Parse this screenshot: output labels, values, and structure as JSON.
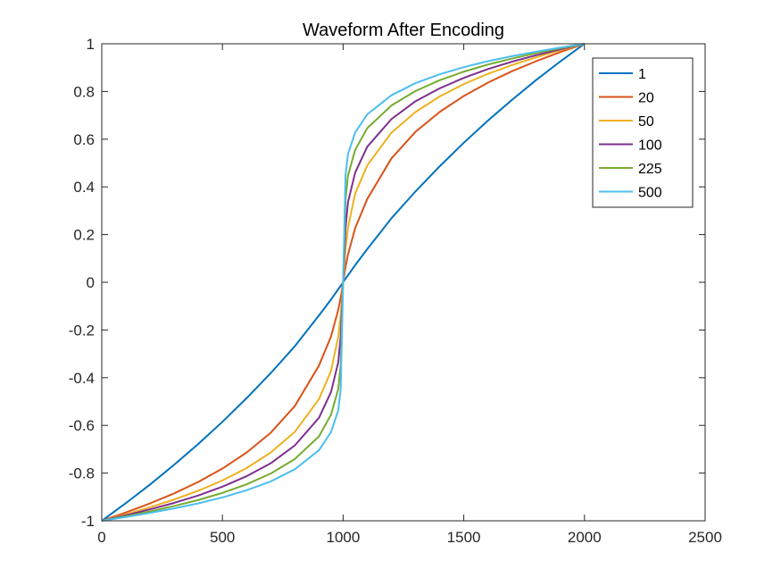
{
  "chart_data": {
    "type": "line",
    "title": "Waveform After Encoding",
    "xlabel": "",
    "ylabel": "",
    "xlim": [
      0,
      2500
    ],
    "ylim": [
      -1,
      1
    ],
    "x_ticks": [
      0,
      500,
      1000,
      1500,
      2000,
      2500
    ],
    "y_ticks": [
      -1,
      -0.8,
      -0.6,
      -0.4,
      -0.2,
      0,
      0.2,
      0.4,
      0.6,
      0.8,
      1
    ],
    "x_tick_labels": [
      "0",
      "500",
      "1000",
      "1500",
      "2000",
      "2500"
    ],
    "y_tick_labels": [
      "-1",
      "-0.8",
      "-0.6",
      "-0.4",
      "-0.2",
      "0",
      "0.2",
      "0.4",
      "0.6",
      "0.8",
      "1"
    ],
    "grid": false,
    "legend_position": "top-right",
    "x": [
      0,
      100,
      200,
      300,
      400,
      500,
      600,
      700,
      800,
      900,
      950,
      980,
      990,
      1000,
      1010,
      1020,
      1050,
      1100,
      1200,
      1300,
      1400,
      1500,
      1600,
      1700,
      1800,
      1900,
      2000
    ],
    "series": [
      {
        "name": "1",
        "color": "#0072BD",
        "values": [
          -1,
          -0.926,
          -0.848,
          -0.765,
          -0.678,
          -0.585,
          -0.486,
          -0.381,
          -0.268,
          -0.139,
          -0.072,
          -0.029,
          -0.015,
          0,
          0.015,
          0.029,
          0.072,
          0.139,
          0.268,
          0.381,
          0.486,
          0.585,
          0.678,
          0.765,
          0.848,
          0.926,
          1
        ]
      },
      {
        "name": "20",
        "color": "#D95319",
        "values": [
          -1,
          -0.965,
          -0.927,
          -0.885,
          -0.837,
          -0.781,
          -0.714,
          -0.631,
          -0.519,
          -0.349,
          -0.227,
          -0.115,
          -0.064,
          0,
          0.064,
          0.115,
          0.227,
          0.349,
          0.519,
          0.631,
          0.714,
          0.781,
          0.837,
          0.885,
          0.927,
          0.965,
          1
        ]
      },
      {
        "name": "50",
        "color": "#EDB120",
        "values": [
          -1,
          -0.973,
          -0.943,
          -0.911,
          -0.874,
          -0.831,
          -0.779,
          -0.714,
          -0.627,
          -0.49,
          -0.372,
          -0.228,
          -0.139,
          0,
          0.139,
          0.228,
          0.372,
          0.49,
          0.627,
          0.714,
          0.779,
          0.831,
          0.874,
          0.911,
          0.943,
          0.973,
          1
        ]
      },
      {
        "name": "100",
        "color": "#7E2F8E",
        "values": [
          -1,
          -0.977,
          -0.952,
          -0.925,
          -0.894,
          -0.857,
          -0.813,
          -0.759,
          -0.684,
          -0.568,
          -0.46,
          -0.335,
          -0.226,
          0,
          0.226,
          0.335,
          0.46,
          0.568,
          0.684,
          0.759,
          0.813,
          0.857,
          0.894,
          0.925,
          0.952,
          0.977,
          1
        ]
      },
      {
        "name": "225",
        "color": "#77AC30",
        "values": [
          -1,
          -0.981,
          -0.961,
          -0.938,
          -0.913,
          -0.883,
          -0.847,
          -0.802,
          -0.741,
          -0.646,
          -0.555,
          -0.447,
          -0.345,
          0,
          0.345,
          0.447,
          0.555,
          0.646,
          0.741,
          0.802,
          0.847,
          0.883,
          0.913,
          0.938,
          0.961,
          0.981,
          1
        ]
      },
      {
        "name": "500",
        "color": "#4DBEEE",
        "values": [
          -1,
          -0.984,
          -0.967,
          -0.948,
          -0.927,
          -0.902,
          -0.872,
          -0.835,
          -0.784,
          -0.704,
          -0.628,
          -0.537,
          -0.448,
          0,
          0.448,
          0.537,
          0.628,
          0.704,
          0.784,
          0.835,
          0.872,
          0.902,
          0.927,
          0.948,
          0.967,
          0.984,
          1
        ]
      }
    ]
  }
}
